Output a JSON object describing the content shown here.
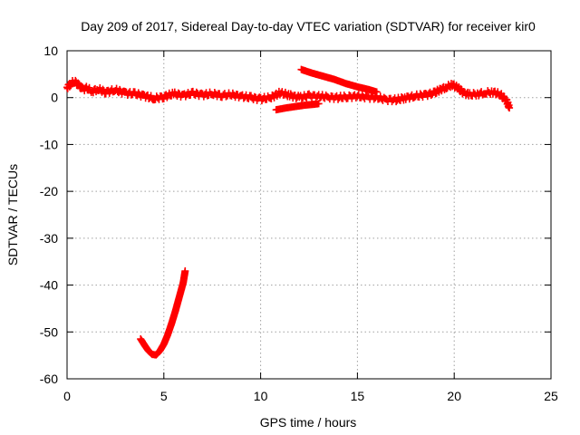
{
  "chart_data": {
    "type": "scatter",
    "title": "Day 209 of 2017, Sidereal Day-to-day VTEC variation (SDTVAR) for receiver kir0",
    "xlabel": "GPS time / hours",
    "ylabel": "SDTVAR / TECUs",
    "xlim": [
      0,
      25
    ],
    "ylim": [
      -60,
      10
    ],
    "xticks": [
      0,
      5,
      10,
      15,
      20,
      25
    ],
    "yticks": [
      10,
      0,
      -10,
      -20,
      -30,
      -40,
      -50,
      -60
    ],
    "grid": true,
    "marker_color": "#ff0000",
    "series": [
      {
        "name": "main band",
        "points": [
          [
            0.0,
            2.2
          ],
          [
            0.2,
            3.0
          ],
          [
            0.4,
            3.5
          ],
          [
            0.6,
            2.6
          ],
          [
            0.8,
            1.8
          ],
          [
            1.0,
            2.0
          ],
          [
            1.3,
            1.4
          ],
          [
            1.6,
            1.8
          ],
          [
            2.0,
            1.2
          ],
          [
            2.5,
            1.6
          ],
          [
            3.0,
            1.0
          ],
          [
            3.5,
            0.8
          ],
          [
            4.0,
            0.4
          ],
          [
            4.5,
            -0.2
          ],
          [
            5.0,
            0.2
          ],
          [
            5.5,
            0.8
          ],
          [
            6.0,
            0.5
          ],
          [
            6.5,
            0.9
          ],
          [
            7.0,
            0.6
          ],
          [
            7.5,
            0.8
          ],
          [
            8.0,
            0.5
          ],
          [
            8.5,
            0.6
          ],
          [
            9.0,
            0.3
          ],
          [
            9.5,
            0.0
          ],
          [
            10.0,
            -0.3
          ],
          [
            10.5,
            0.0
          ],
          [
            11.0,
            1.0
          ],
          [
            11.5,
            0.5
          ],
          [
            12.0,
            0.0
          ],
          [
            12.5,
            0.4
          ],
          [
            13.0,
            0.3
          ],
          [
            13.5,
            0.1
          ],
          [
            14.0,
            0.0
          ],
          [
            14.5,
            0.2
          ],
          [
            15.0,
            0.3
          ],
          [
            15.5,
            0.1
          ],
          [
            16.0,
            0.0
          ],
          [
            16.5,
            -0.4
          ],
          [
            17.0,
            -0.5
          ],
          [
            17.5,
            0.0
          ],
          [
            18.0,
            0.3
          ],
          [
            18.5,
            0.6
          ],
          [
            19.0,
            1.0
          ],
          [
            19.3,
            1.8
          ],
          [
            19.6,
            2.2
          ],
          [
            19.9,
            2.8
          ],
          [
            20.2,
            2.0
          ],
          [
            20.5,
            1.0
          ],
          [
            20.8,
            0.6
          ],
          [
            21.2,
            0.8
          ],
          [
            21.6,
            1.0
          ],
          [
            22.0,
            1.2
          ],
          [
            22.4,
            0.6
          ],
          [
            22.7,
            -0.6
          ],
          [
            22.85,
            -2.2
          ]
        ]
      },
      {
        "name": "arc from 12h",
        "points": [
          [
            12.1,
            6.0
          ],
          [
            12.6,
            5.3
          ],
          [
            13.2,
            4.6
          ],
          [
            13.8,
            3.9
          ],
          [
            14.4,
            3.0
          ],
          [
            15.0,
            2.3
          ],
          [
            15.6,
            1.7
          ],
          [
            16.0,
            1.2
          ]
        ]
      },
      {
        "name": "low track 10.8-13h",
        "points": [
          [
            10.8,
            -2.6
          ],
          [
            11.3,
            -2.2
          ],
          [
            11.8,
            -1.9
          ],
          [
            12.3,
            -1.6
          ],
          [
            12.8,
            -1.4
          ],
          [
            13.0,
            -1.3
          ]
        ]
      },
      {
        "name": "J-shaped dip",
        "points": [
          [
            3.8,
            -51.5
          ],
          [
            4.0,
            -52.8
          ],
          [
            4.2,
            -54.0
          ],
          [
            4.4,
            -54.8
          ],
          [
            4.6,
            -54.9
          ],
          [
            4.8,
            -54.0
          ],
          [
            5.0,
            -52.6
          ],
          [
            5.2,
            -50.6
          ],
          [
            5.4,
            -48.2
          ],
          [
            5.6,
            -45.5
          ],
          [
            5.8,
            -42.5
          ],
          [
            6.0,
            -39.5
          ],
          [
            6.1,
            -37.0
          ]
        ]
      }
    ]
  }
}
